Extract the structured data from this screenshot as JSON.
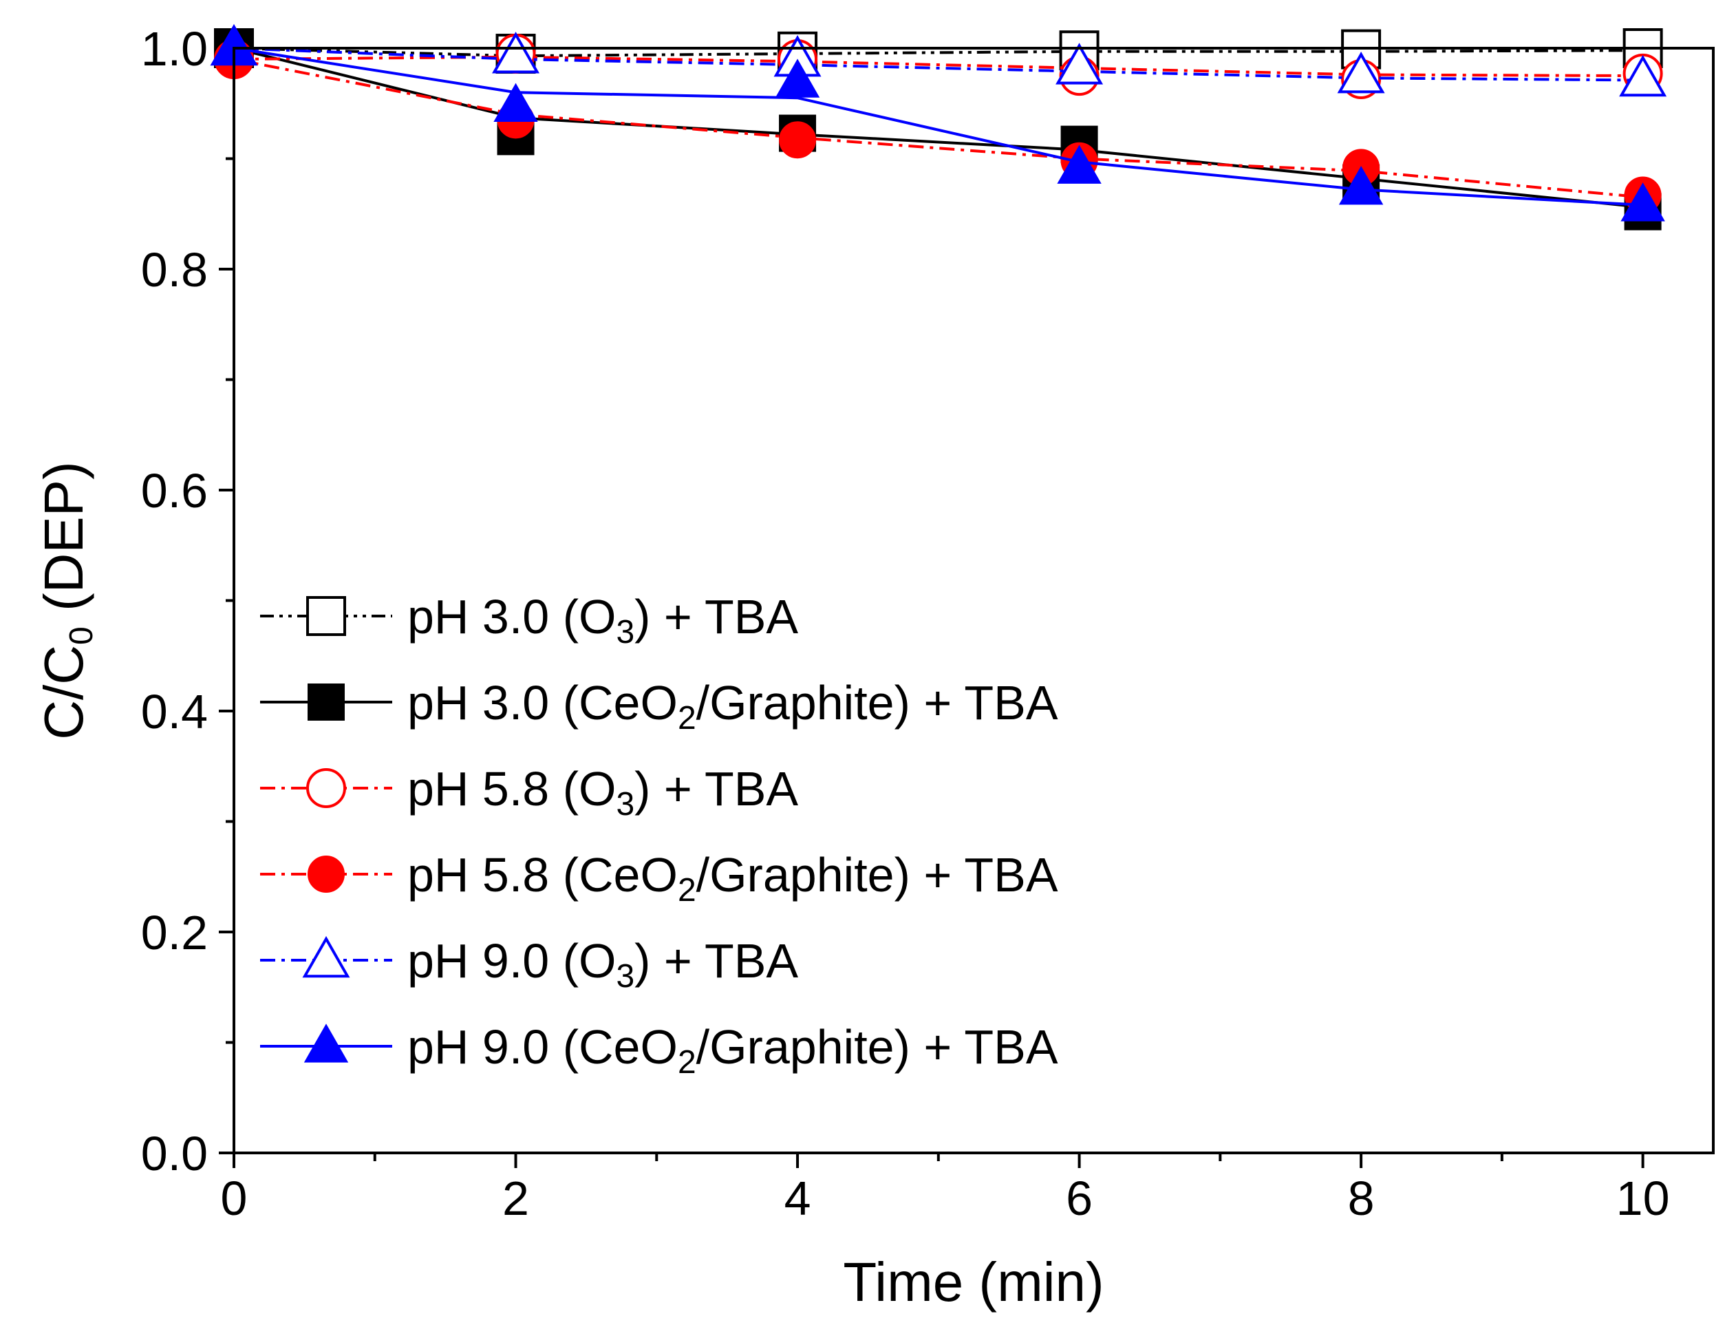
{
  "chart_data": {
    "type": "line",
    "title": "",
    "xlabel": "Time (min)",
    "ylabel": {
      "main": "C/C",
      "sub": "0",
      "tail": " (DEP)"
    },
    "xlim": [
      0,
      10.5
    ],
    "ylim": [
      0,
      1.0
    ],
    "x_ticks": [
      {
        "value": 0,
        "label": "0"
      },
      {
        "value": 2,
        "label": "2"
      },
      {
        "value": 4,
        "label": "4"
      },
      {
        "value": 6,
        "label": "6"
      },
      {
        "value": 8,
        "label": "8"
      },
      {
        "value": 10,
        "label": "10"
      }
    ],
    "y_ticks": [
      {
        "value": 0.0,
        "label": "0.0"
      },
      {
        "value": 0.2,
        "label": "0.2"
      },
      {
        "value": 0.4,
        "label": "0.4"
      },
      {
        "value": 0.6,
        "label": "0.6"
      },
      {
        "value": 0.8,
        "label": "0.8"
      },
      {
        "value": 1.0,
        "label": "1.0"
      }
    ],
    "x_minor_ticks": [
      1,
      3,
      5,
      7,
      9
    ],
    "y_minor_ticks": [
      0.1,
      0.3,
      0.5,
      0.7,
      0.9
    ],
    "legend_position": "left-bottom",
    "x": [
      0,
      2,
      4,
      6,
      8,
      10
    ],
    "series": [
      {
        "name": "pH 3.0 (O3) + TBA",
        "label_parts": [
          {
            "t": "pH 3.0 (O"
          },
          {
            "t": "3",
            "sub": true
          },
          {
            "t": ") + TBA"
          }
        ],
        "values": [
          1.0,
          0.995,
          0.997,
          0.998,
          0.999,
          1.0
        ],
        "fit": [
          1.0,
          0.993,
          0.995,
          0.997,
          0.997,
          0.998
        ],
        "color": "#000000",
        "marker": "square",
        "filled": false,
        "dash": "dashdotdot"
      },
      {
        "name": "pH 3.0 (CeO2/Graphite) + TBA",
        "label_parts": [
          {
            "t": "pH 3.0 (CeO"
          },
          {
            "t": "2",
            "sub": true
          },
          {
            "t": "/Graphite) + TBA"
          }
        ],
        "values": [
          1.0,
          0.92,
          0.923,
          0.913,
          0.878,
          0.852
        ],
        "fit": [
          1.0,
          0.937,
          0.922,
          0.908,
          0.882,
          0.856
        ],
        "color": "#000000",
        "marker": "square",
        "filled": true,
        "dash": "solid"
      },
      {
        "name": "pH 5.8 (O3) + TBA",
        "label_parts": [
          {
            "t": "pH 5.8 (O"
          },
          {
            "t": "3",
            "sub": true
          },
          {
            "t": ") + TBA"
          }
        ],
        "values": [
          0.99,
          0.995,
          0.99,
          0.975,
          0.972,
          0.977
        ],
        "fit": [
          0.99,
          0.992,
          0.988,
          0.982,
          0.976,
          0.975
        ],
        "color": "#ff0000",
        "marker": "circle",
        "filled": false,
        "dash": "dashdot"
      },
      {
        "name": "pH 5.8 (CeO2/Graphite) + TBA",
        "label_parts": [
          {
            "t": "pH 5.8 (CeO"
          },
          {
            "t": "2",
            "sub": true
          },
          {
            "t": "/Graphite) + TBA"
          }
        ],
        "values": [
          0.99,
          0.935,
          0.917,
          0.898,
          0.892,
          0.867
        ],
        "fit": [
          0.99,
          0.94,
          0.919,
          0.9,
          0.889,
          0.865
        ],
        "color": "#ff0000",
        "marker": "circle",
        "filled": true,
        "dash": "dashdot"
      },
      {
        "name": "pH 9.0 (O3) + TBA",
        "label_parts": [
          {
            "t": "pH 9.0 (O"
          },
          {
            "t": "3",
            "sub": true
          },
          {
            "t": ") + TBA"
          }
        ],
        "values": [
          1.0,
          0.993,
          0.99,
          0.983,
          0.975,
          0.972
        ],
        "fit": [
          1.0,
          0.99,
          0.985,
          0.979,
          0.973,
          0.971
        ],
        "color": "#0000ff",
        "marker": "triangle",
        "filled": false,
        "dash": "dashdot"
      },
      {
        "name": "pH 9.0 (CeO2/Graphite) + TBA",
        "label_parts": [
          {
            "t": "pH 9.0 (CeO"
          },
          {
            "t": "2",
            "sub": true
          },
          {
            "t": "/Graphite) + TBA"
          }
        ],
        "values": [
          1.0,
          0.948,
          0.97,
          0.892,
          0.873,
          0.858
        ],
        "fit": [
          1.0,
          0.96,
          0.955,
          0.897,
          0.872,
          0.858
        ],
        "color": "#0000ff",
        "marker": "triangle",
        "filled": true,
        "dash": "solid"
      }
    ]
  }
}
